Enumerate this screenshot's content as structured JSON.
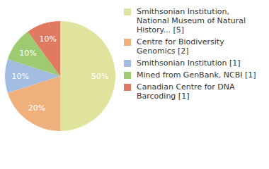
{
  "chart_data": {
    "type": "pie",
    "categories": [
      "Smithsonian Institution, National Museum of Natural History... [5]",
      "Centre for Biodiversity Genomics [2]",
      "Smithsonian Institution [1]",
      "Mined from GenBank, NCBI [1]",
      "Canadian Centre for DNA Barcoding [1]"
    ],
    "values": [
      50,
      20,
      10,
      10,
      10
    ],
    "value_labels": [
      "50%",
      "20%",
      "10%",
      "10%",
      "10%"
    ],
    "colors": [
      "#dfe39d",
      "#efb07c",
      "#a2bde0",
      "#9ecb70",
      "#e07a60"
    ],
    "data_labels": true,
    "legend": "right"
  }
}
